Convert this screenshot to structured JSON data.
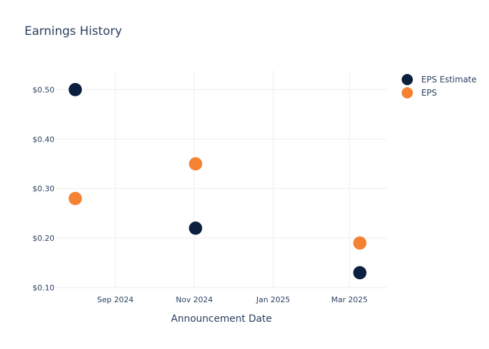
{
  "chart_data": {
    "type": "scatter",
    "title": "Earnings History",
    "xlabel": "Announcement Date",
    "ylabel": "",
    "x_ticks": [
      {
        "date": "2024-09-01",
        "label": "Sep 2024"
      },
      {
        "date": "2024-11-01",
        "label": "Nov 2024"
      },
      {
        "date": "2025-01-01",
        "label": "Jan 2025"
      },
      {
        "date": "2025-03-01",
        "label": "Mar 2025"
      }
    ],
    "xlim": [
      "2024-07-17",
      "2025-03-30"
    ],
    "y_ticks": [
      {
        "value": 0.1,
        "label": "$0.10"
      },
      {
        "value": 0.2,
        "label": "$0.20"
      },
      {
        "value": 0.3,
        "label": "$0.30"
      },
      {
        "value": 0.4,
        "label": "$0.40"
      },
      {
        "value": 0.5,
        "label": "$0.50"
      }
    ],
    "ylim": [
      0.1,
      0.54
    ],
    "grid": true,
    "legend_position": "top-right",
    "series": [
      {
        "name": "EPS Estimate",
        "color": "#0b1f3f",
        "points": [
          {
            "x": "2024-08-01",
            "y": 0.5
          },
          {
            "x": "2024-11-02",
            "y": 0.22
          },
          {
            "x": "2025-03-09",
            "y": 0.13
          }
        ]
      },
      {
        "name": "EPS",
        "color": "#f58233",
        "points": [
          {
            "x": "2024-08-01",
            "y": 0.28
          },
          {
            "x": "2024-11-02",
            "y": 0.35
          },
          {
            "x": "2025-03-09",
            "y": 0.19
          }
        ]
      }
    ]
  }
}
